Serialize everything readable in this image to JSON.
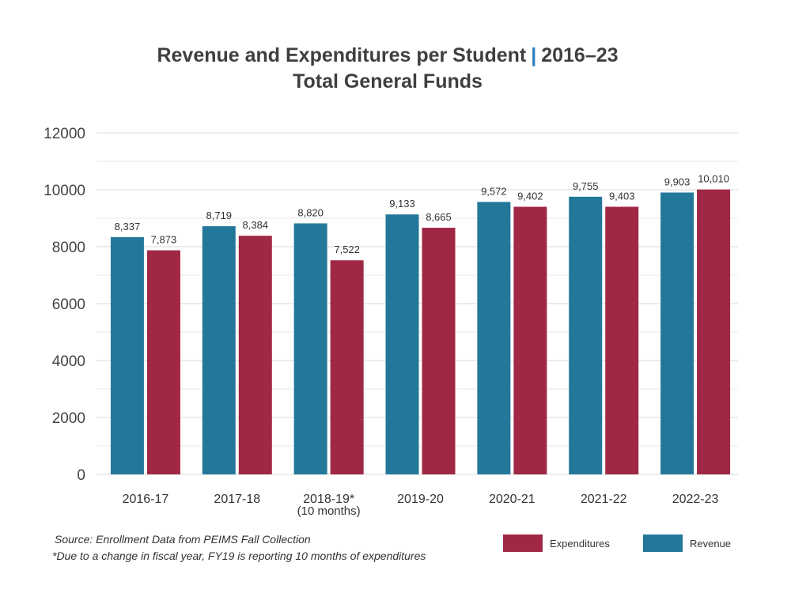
{
  "title": {
    "line1_left": "Revenue and Expenditures per Student",
    "separator": "|",
    "line1_right": "2016–23",
    "line2": "Total General Funds"
  },
  "chart_data": {
    "type": "bar",
    "categories": [
      "2016-17",
      "2017-18",
      "2018-19*",
      "2019-20",
      "2020-21",
      "2021-22",
      "2022-23"
    ],
    "category_sublabels": [
      "",
      "",
      "(10 months)",
      "",
      "",
      "",
      ""
    ],
    "series": [
      {
        "name": "Revenue",
        "color": "#23789a",
        "values": [
          8337,
          8719,
          8820,
          9133,
          9572,
          9755,
          9903
        ],
        "labels": [
          "8,337",
          "8,719",
          "8,820",
          "9,133",
          "9,572",
          "9,755",
          "9,903"
        ]
      },
      {
        "name": "Expenditures",
        "color": "#a02844",
        "values": [
          7873,
          8384,
          7522,
          8665,
          9402,
          9403,
          10010
        ],
        "labels": [
          "7,873",
          "8,384",
          "7,522",
          "8,665",
          "9,402",
          "9,403",
          "10,010"
        ]
      }
    ],
    "ylim": [
      0,
      12000
    ],
    "yticks": [
      "0",
      "2000",
      "4000",
      "6000",
      "8000",
      "10000",
      "12000"
    ],
    "ytick_values": [
      0,
      2000,
      4000,
      6000,
      8000,
      10000,
      12000
    ],
    "xlabel": "",
    "ylabel": "",
    "grid": true
  },
  "notes": {
    "source": "Source: Enrollment Data from PEIMS Fall Collection",
    "footnote": "*Due to a change in fiscal year, FY19 is reporting 10 months of expenditures"
  },
  "legend": {
    "expenditures_label": "Expenditures",
    "revenue_label": "Revenue"
  }
}
